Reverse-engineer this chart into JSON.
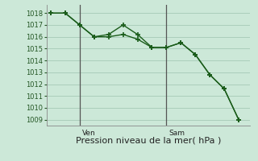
{
  "bg_color": "#cce8d8",
  "grid_color": "#aacebb",
  "line_color": "#1a5c1a",
  "xlabel": "Pression niveau de la mer( hPa )",
  "xlabel_fontsize": 8,
  "ylim": [
    1008.5,
    1018.7
  ],
  "yticks": [
    1009,
    1010,
    1011,
    1012,
    1013,
    1014,
    1015,
    1016,
    1017,
    1018
  ],
  "ytick_fontsize": 6,
  "series1_x": [
    0,
    1,
    2,
    3,
    4,
    5,
    6,
    7,
    8,
    9,
    10,
    11,
    12,
    13
  ],
  "series1_y": [
    1018,
    1018,
    1017,
    1016,
    1016.2,
    1017,
    1016.2,
    1015.1,
    1015.1,
    1015.5,
    1014.5,
    1012.8,
    1011.6,
    1009
  ],
  "series2_x": [
    0,
    1,
    2,
    3,
    4,
    5,
    6,
    7,
    8,
    9,
    10,
    11,
    12,
    13
  ],
  "series2_y": [
    1018,
    1018,
    1017,
    1016,
    1016.0,
    1016.2,
    1015.8,
    1015.1,
    1015.1,
    1015.5,
    1014.5,
    1012.8,
    1011.6,
    1009
  ],
  "vlines": [
    {
      "x": 2,
      "label": "Ven"
    },
    {
      "x": 8,
      "label": "Sam"
    }
  ],
  "vline_fontsize": 6.5,
  "xlim": [
    -0.3,
    13.8
  ]
}
